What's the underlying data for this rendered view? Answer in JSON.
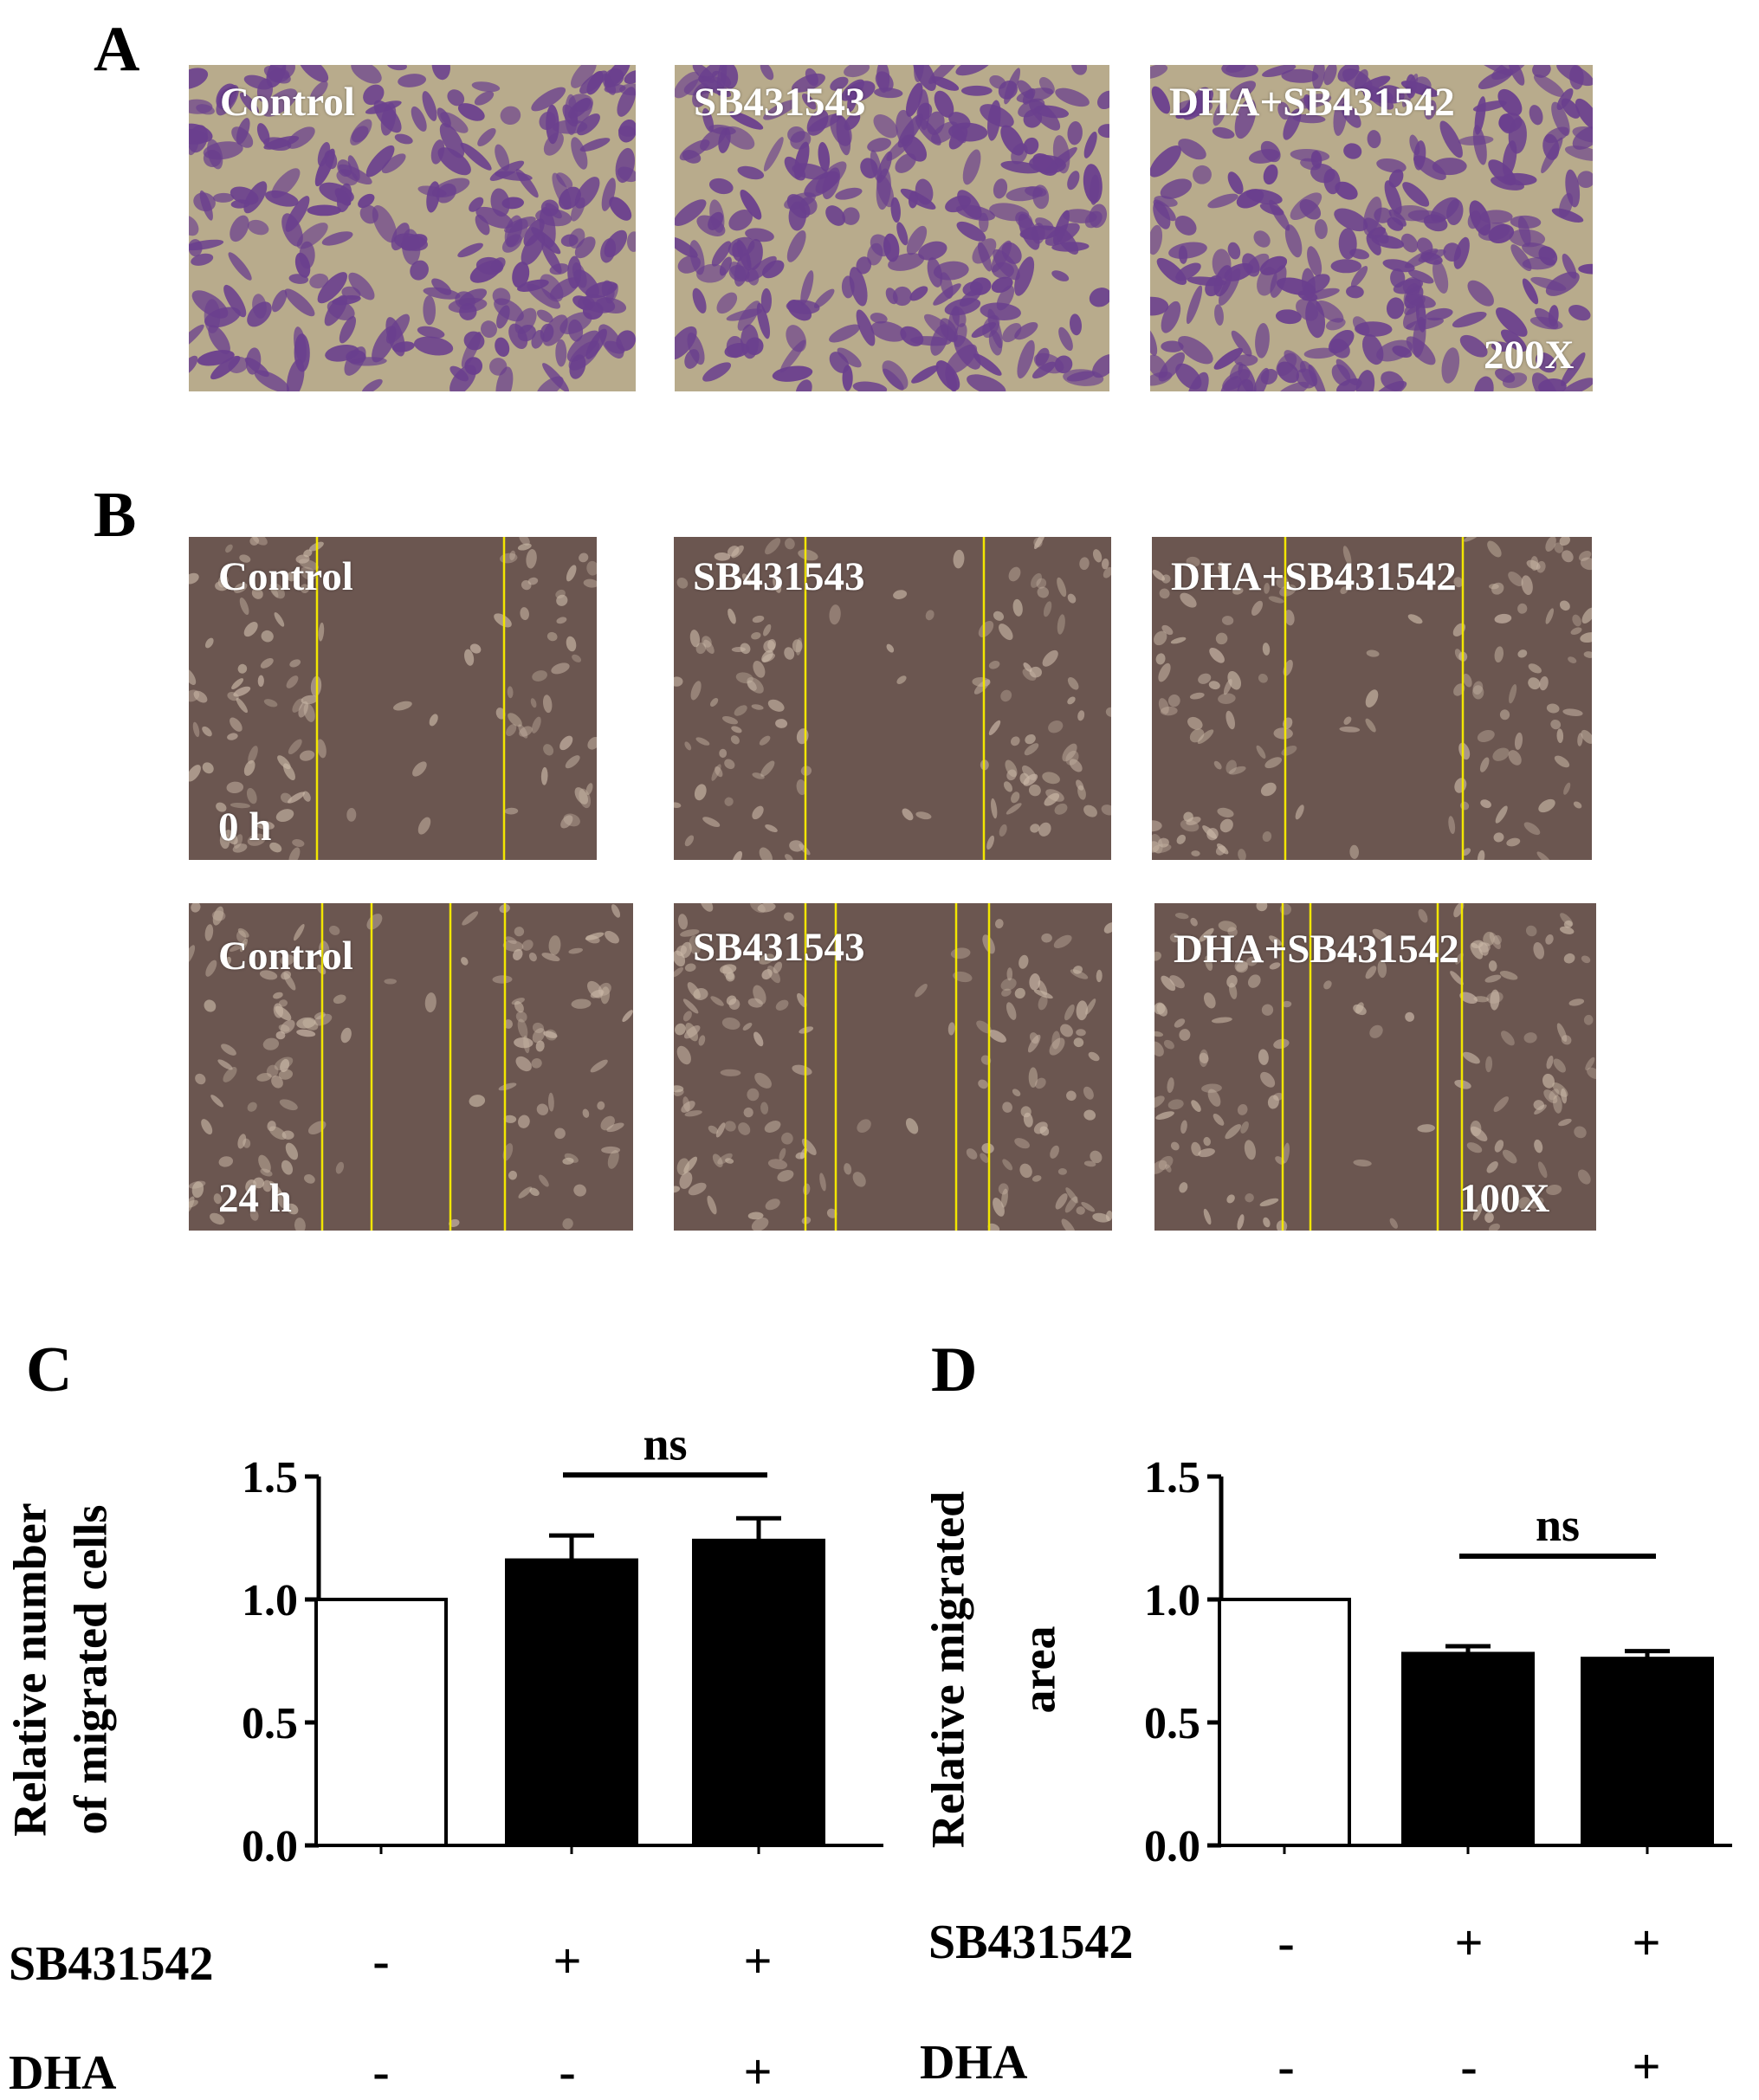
{
  "panels": {
    "a": {
      "letter": "A",
      "magnification": "200X",
      "images": [
        {
          "label": "Control"
        },
        {
          "label": "SB431543"
        },
        {
          "label": "DHA+SB431542"
        }
      ]
    },
    "b": {
      "letter": "B",
      "magnification": "100X",
      "time_0": "0 h",
      "time_24": "24 h",
      "row_0h": [
        {
          "label": "Control"
        },
        {
          "label": "SB431543"
        },
        {
          "label": "DHA+SB431542"
        }
      ],
      "row_24h": [
        {
          "label": "Control"
        },
        {
          "label": "SB431543"
        },
        {
          "label": "DHA+SB431542"
        }
      ]
    },
    "c": {
      "letter": "C",
      "conditions": {
        "row1_label": "SB431542",
        "row1_signs": [
          "-",
          "+",
          "+"
        ],
        "row2_label": "DHA",
        "row2_signs": [
          "-",
          "-",
          "+"
        ]
      }
    },
    "d": {
      "letter": "D",
      "conditions": {
        "row1_label": "SB431542",
        "row1_signs": [
          "-",
          "+",
          "+"
        ],
        "row2_label": "DHA",
        "row2_signs": [
          "-",
          "-",
          "+"
        ]
      }
    }
  },
  "colors": {
    "stain_bg": "#b8ab8c",
    "stain_cell": "#6a3f8e",
    "phase_bg": "#6b5650",
    "phase_cell": "#c9b7a6",
    "scratch_line": "#f2e600",
    "bar_filled": "#000000",
    "bar_open": "#ffffff"
  },
  "chart_data": [
    {
      "type": "bar",
      "ylabel": [
        "Relative number",
        "of migrated cells"
      ],
      "categories": [
        "1",
        "2",
        "3"
      ],
      "values": [
        1.0,
        1.16,
        1.24
      ],
      "errors": [
        0.0,
        0.1,
        0.09
      ],
      "fills": [
        "open",
        "filled",
        "filled"
      ],
      "ylim": [
        0,
        1.5
      ],
      "yticks": [
        "0.0",
        "0.5",
        "1.0",
        "1.5"
      ],
      "significance": {
        "from": 1,
        "to": 2,
        "label": "ns"
      }
    },
    {
      "type": "bar",
      "ylabel": [
        "Relative migrated",
        "area"
      ],
      "categories": [
        "1",
        "2",
        "3"
      ],
      "values": [
        1.0,
        0.78,
        0.76
      ],
      "errors": [
        0.0,
        0.03,
        0.03
      ],
      "fills": [
        "open",
        "filled",
        "filled"
      ],
      "ylim": [
        0,
        1.5
      ],
      "yticks": [
        "0.0",
        "0.5",
        "1.0",
        "1.5"
      ],
      "significance": {
        "from": 1,
        "to": 2,
        "label": "ns"
      }
    }
  ]
}
